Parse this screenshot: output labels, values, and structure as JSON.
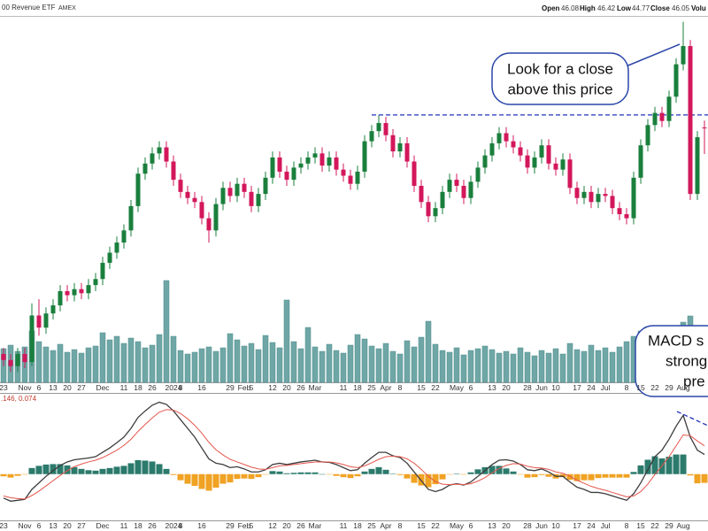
{
  "chart_data": {
    "type": "candlestick",
    "header": {
      "title": "00 Revenue ETF",
      "exchange": "AMEX",
      "ohlc_labels": [
        "Open",
        "High",
        "Low",
        "Close",
        "Volu"
      ]
    },
    "macd_label": ".146, 0.074",
    "annotations": [
      [
        "Look for a close",
        "above this price"
      ],
      [
        "MACD s",
        "strong",
        "pre"
      ]
    ],
    "up_color": "#1a7f3c",
    "down_color": "#d3175b",
    "volume_color": "#6fa7a6",
    "macd_color": "#3d3d3d",
    "signal_color": "#e4554c",
    "hist_up_color": "#2b7a6c",
    "hist_down_color": "#f0a223",
    "resistance": 46.7,
    "ylim": [
      33.5,
      51.5
    ],
    "vlim": [
      0,
      13
    ],
    "mlim": [
      -1.0,
      1.7
    ],
    "categories": [
      "23",
      null,
      null,
      "Nov",
      null,
      "6",
      null,
      "13",
      null,
      "20",
      null,
      "27",
      null,
      null,
      "Dec",
      null,
      null,
      "11",
      null,
      "18",
      null,
      "26",
      null,
      null,
      "2024",
      "8",
      null,
      null,
      "16",
      null,
      null,
      null,
      "29",
      null,
      "Feb",
      "5",
      null,
      null,
      "12",
      null,
      "20",
      null,
      "26",
      null,
      "Mar",
      null,
      null,
      null,
      "11",
      null,
      "18",
      null,
      "25",
      null,
      "Apr",
      null,
      "8",
      null,
      null,
      "15",
      null,
      "22",
      null,
      null,
      "May",
      null,
      "6",
      null,
      null,
      "13",
      null,
      "20",
      null,
      null,
      "28",
      null,
      "Jun",
      null,
      "10",
      null,
      null,
      "17",
      null,
      "24",
      null,
      "Jul",
      null,
      null,
      "8",
      null,
      "15",
      null,
      "22",
      null,
      "29",
      null,
      "Aug",
      null,
      null,
      null
    ],
    "candles": [
      [
        34.9,
        35.2,
        34.3,
        34.6
      ],
      [
        34.6,
        34.9,
        34.0,
        34.3
      ],
      [
        34.3,
        35.2,
        34.0,
        34.9
      ],
      [
        34.9,
        35.2,
        34.2,
        34.5
      ],
      [
        34.5,
        37.4,
        34.3,
        36.8
      ],
      [
        36.8,
        37.6,
        35.8,
        36.2
      ],
      [
        36.2,
        37.2,
        35.9,
        36.9
      ],
      [
        36.9,
        37.6,
        36.6,
        37.3
      ],
      [
        37.3,
        38.3,
        37.0,
        38.0
      ],
      [
        38.0,
        38.3,
        37.5,
        37.8
      ],
      [
        37.8,
        38.4,
        37.5,
        38.1
      ],
      [
        38.1,
        38.4,
        37.6,
        37.9
      ],
      [
        37.9,
        38.6,
        37.6,
        38.3
      ],
      [
        38.3,
        38.9,
        38.0,
        38.6
      ],
      [
        38.6,
        39.7,
        38.3,
        39.4
      ],
      [
        39.4,
        40.2,
        39.1,
        39.9
      ],
      [
        39.9,
        40.7,
        39.6,
        40.4
      ],
      [
        40.4,
        41.3,
        40.1,
        41.0
      ],
      [
        41.0,
        42.5,
        40.7,
        42.2
      ],
      [
        42.2,
        44.1,
        41.9,
        43.8
      ],
      [
        43.8,
        44.6,
        43.5,
        44.3
      ],
      [
        44.3,
        45.1,
        44.0,
        44.8
      ],
      [
        44.8,
        45.4,
        44.5,
        45.1
      ],
      [
        45.1,
        45.4,
        44.1,
        44.4
      ],
      [
        44.4,
        44.7,
        43.2,
        43.5
      ],
      [
        43.5,
        43.8,
        42.6,
        42.9
      ],
      [
        42.9,
        43.2,
        42.3,
        42.6
      ],
      [
        42.6,
        42.9,
        42.1,
        42.4
      ],
      [
        42.4,
        42.7,
        41.3,
        41.6
      ],
      [
        41.6,
        41.9,
        40.4,
        41.0
      ],
      [
        41.0,
        42.6,
        40.7,
        42.3
      ],
      [
        42.3,
        43.4,
        42.0,
        43.1
      ],
      [
        43.1,
        43.4,
        42.4,
        42.7
      ],
      [
        42.7,
        43.6,
        42.4,
        43.3
      ],
      [
        43.3,
        43.6,
        42.6,
        42.9
      ],
      [
        42.9,
        43.2,
        41.9,
        42.2
      ],
      [
        42.2,
        43.1,
        41.9,
        42.8
      ],
      [
        42.8,
        43.9,
        42.5,
        43.6
      ],
      [
        43.6,
        44.9,
        43.3,
        44.6
      ],
      [
        44.6,
        44.9,
        43.6,
        43.9
      ],
      [
        43.9,
        44.2,
        43.2,
        43.5
      ],
      [
        43.5,
        44.4,
        43.2,
        44.1
      ],
      [
        44.1,
        44.6,
        43.8,
        44.3
      ],
      [
        44.3,
        44.9,
        44.0,
        44.6
      ],
      [
        44.6,
        45.1,
        44.3,
        44.8
      ],
      [
        44.8,
        45.1,
        43.9,
        44.2
      ],
      [
        44.2,
        44.9,
        43.9,
        44.6
      ],
      [
        44.6,
        44.9,
        43.7,
        44.0
      ],
      [
        44.0,
        44.3,
        43.4,
        43.7
      ],
      [
        43.7,
        44.0,
        43.0,
        43.3
      ],
      [
        43.3,
        44.2,
        43.0,
        43.9
      ],
      [
        43.9,
        45.7,
        43.6,
        45.4
      ],
      [
        45.4,
        46.2,
        45.1,
        45.9
      ],
      [
        45.9,
        46.7,
        45.6,
        46.3
      ],
      [
        46.3,
        46.6,
        45.4,
        45.7
      ],
      [
        45.7,
        46.0,
        44.6,
        44.9
      ],
      [
        44.9,
        45.6,
        44.6,
        45.3
      ],
      [
        45.3,
        45.6,
        44.1,
        44.4
      ],
      [
        44.4,
        44.7,
        42.9,
        43.2
      ],
      [
        43.2,
        43.5,
        42.1,
        42.4
      ],
      [
        42.4,
        42.7,
        41.4,
        41.7
      ],
      [
        41.7,
        42.4,
        41.4,
        42.1
      ],
      [
        42.1,
        43.2,
        41.8,
        42.9
      ],
      [
        42.9,
        43.8,
        42.6,
        43.5
      ],
      [
        43.5,
        43.8,
        42.9,
        43.2
      ],
      [
        43.2,
        43.5,
        42.3,
        42.6
      ],
      [
        42.6,
        43.7,
        42.3,
        43.4
      ],
      [
        43.4,
        44.4,
        43.1,
        44.1
      ],
      [
        44.1,
        45.0,
        43.8,
        44.7
      ],
      [
        44.7,
        45.6,
        44.4,
        45.3
      ],
      [
        45.3,
        46.1,
        45.0,
        45.8
      ],
      [
        45.8,
        46.1,
        45.1,
        45.4
      ],
      [
        45.4,
        45.7,
        44.8,
        45.1
      ],
      [
        45.1,
        45.4,
        44.4,
        44.7
      ],
      [
        44.7,
        45.0,
        43.8,
        44.1
      ],
      [
        44.1,
        44.9,
        43.8,
        44.6
      ],
      [
        44.6,
        45.5,
        44.3,
        45.2
      ],
      [
        45.2,
        45.5,
        44.0,
        44.3
      ],
      [
        44.3,
        44.6,
        43.7,
        44.0
      ],
      [
        44.0,
        44.8,
        43.7,
        44.5
      ],
      [
        44.5,
        44.8,
        42.8,
        43.1
      ],
      [
        43.1,
        43.4,
        42.3,
        42.6
      ],
      [
        42.6,
        43.2,
        42.3,
        42.9
      ],
      [
        42.9,
        43.2,
        42.1,
        42.4
      ],
      [
        42.4,
        43.1,
        42.1,
        42.8
      ],
      [
        42.8,
        43.1,
        42.4,
        42.7
      ],
      [
        42.7,
        43.0,
        41.8,
        42.1
      ],
      [
        42.1,
        42.4,
        41.5,
        41.8
      ],
      [
        41.8,
        42.1,
        41.3,
        41.6
      ],
      [
        41.6,
        43.9,
        41.3,
        43.6
      ],
      [
        43.6,
        45.5,
        43.3,
        45.2
      ],
      [
        45.2,
        46.5,
        44.9,
        46.2
      ],
      [
        46.2,
        47.1,
        45.9,
        46.8
      ],
      [
        46.8,
        47.1,
        46.1,
        46.4
      ],
      [
        46.4,
        47.9,
        46.1,
        47.6
      ],
      [
        47.6,
        49.5,
        47.3,
        49.2
      ],
      [
        49.2,
        51.3,
        48.9,
        50.1
      ],
      [
        50.1,
        50.4,
        42.5,
        42.8
      ],
      [
        42.8,
        45.9,
        42.5,
        45.6
      ],
      [
        46.08,
        46.42,
        44.77,
        46.05
      ]
    ],
    "volume": [
      3.8,
      4.2,
      3.5,
      4.0,
      5.8,
      4.6,
      4.0,
      3.6,
      4.3,
      3.4,
      3.7,
      3.3,
      3.9,
      4.1,
      5.6,
      4.8,
      5.2,
      4.4,
      5.0,
      4.6,
      3.9,
      4.2,
      5.4,
      11.5,
      5.2,
      3.6,
      3.2,
      3.4,
      3.8,
      4.0,
      3.5,
      3.9,
      5.5,
      4.8,
      4.1,
      4.4,
      3.7,
      5.3,
      4.5,
      3.9,
      9.3,
      4.6,
      3.8,
      6.2,
      4.0,
      3.5,
      4.3,
      3.6,
      3.3,
      4.2,
      5.4,
      4.9,
      4.1,
      3.8,
      4.4,
      3.5,
      3.2,
      4.7,
      4.0,
      5.1,
      6.9,
      4.3,
      3.6,
      3.4,
      3.9,
      3.1,
      3.6,
      3.8,
      4.1,
      3.7,
      3.3,
      3.5,
      3.2,
      3.9,
      3.4,
      3.0,
      3.6,
      3.3,
      3.8,
      3.2,
      4.4,
      3.7,
      3.5,
      4.2,
      3.6,
      3.9,
      3.4,
      4.0,
      4.6,
      5.2,
      5.8,
      5.0,
      4.6,
      4.8,
      5.5,
      6.2,
      6.8,
      7.5,
      6.4,
      5.6
    ],
    "macd": [
      -0.55,
      -0.62,
      -0.6,
      -0.58,
      -0.35,
      -0.2,
      -0.05,
      0.08,
      0.2,
      0.28,
      0.33,
      0.35,
      0.37,
      0.4,
      0.5,
      0.6,
      0.72,
      0.85,
      1.05,
      1.3,
      1.45,
      1.58,
      1.65,
      1.6,
      1.45,
      1.25,
      1.05,
      0.85,
      0.6,
      0.35,
      0.25,
      0.22,
      0.15,
      0.17,
      0.12,
      0.05,
      0.05,
      0.1,
      0.22,
      0.25,
      0.22,
      0.25,
      0.28,
      0.3,
      0.32,
      0.28,
      0.27,
      0.22,
      0.15,
      0.08,
      0.1,
      0.25,
      0.38,
      0.5,
      0.5,
      0.42,
      0.38,
      0.25,
      0.05,
      -0.15,
      -0.35,
      -0.4,
      -0.35,
      -0.25,
      -0.22,
      -0.25,
      -0.18,
      -0.05,
      0.08,
      0.22,
      0.32,
      0.33,
      0.3,
      0.22,
      0.1,
      0.08,
      0.12,
      0.05,
      -0.05,
      -0.05,
      -0.18,
      -0.3,
      -0.35,
      -0.42,
      -0.42,
      -0.45,
      -0.5,
      -0.55,
      -0.6,
      -0.45,
      -0.2,
      0.1,
      0.4,
      0.55,
      0.8,
      1.1,
      1.35,
      0.85,
      0.55,
      0.45
    ],
    "signal": [
      -0.5,
      -0.54,
      -0.56,
      -0.57,
      -0.49,
      -0.39,
      -0.27,
      -0.15,
      -0.03,
      0.08,
      0.17,
      0.23,
      0.28,
      0.32,
      0.38,
      0.46,
      0.55,
      0.66,
      0.8,
      0.98,
      1.14,
      1.29,
      1.42,
      1.48,
      1.47,
      1.39,
      1.27,
      1.12,
      0.94,
      0.73,
      0.56,
      0.44,
      0.34,
      0.28,
      0.22,
      0.16,
      0.12,
      0.11,
      0.15,
      0.19,
      0.2,
      0.22,
      0.24,
      0.26,
      0.28,
      0.28,
      0.28,
      0.26,
      0.22,
      0.17,
      0.15,
      0.19,
      0.26,
      0.34,
      0.4,
      0.41,
      0.4,
      0.35,
      0.25,
      0.11,
      -0.05,
      -0.17,
      -0.23,
      -0.24,
      -0.23,
      -0.24,
      -0.22,
      -0.16,
      -0.08,
      0.03,
      0.13,
      0.2,
      0.24,
      0.23,
      0.18,
      0.15,
      0.14,
      0.11,
      0.05,
      0.02,
      -0.05,
      -0.14,
      -0.21,
      -0.28,
      -0.33,
      -0.37,
      -0.42,
      -0.47,
      -0.52,
      -0.5,
      -0.4,
      -0.23,
      -0.01,
      0.19,
      0.4,
      0.65,
      0.9,
      0.88,
      0.76,
      0.65
    ],
    "histogram": [
      -0.05,
      -0.08,
      -0.04,
      -0.01,
      0.14,
      0.19,
      0.22,
      0.23,
      0.23,
      0.2,
      0.16,
      0.12,
      0.09,
      0.08,
      0.12,
      0.14,
      0.17,
      0.19,
      0.25,
      0.32,
      0.31,
      0.29,
      0.23,
      0.12,
      -0.02,
      -0.14,
      -0.22,
      -0.27,
      -0.34,
      -0.38,
      -0.31,
      -0.22,
      -0.19,
      -0.11,
      -0.1,
      -0.11,
      -0.07,
      -0.01,
      0.07,
      0.06,
      0.02,
      0.03,
      0.04,
      0.04,
      0.04,
      0,
      -0.01,
      -0.04,
      -0.07,
      -0.09,
      -0.05,
      0.06,
      0.12,
      0.16,
      0.1,
      0.01,
      -0.02,
      -0.1,
      -0.2,
      -0.26,
      -0.3,
      -0.23,
      -0.12,
      -0.01,
      0.01,
      -0.01,
      0.04,
      0.11,
      0.16,
      0.19,
      0.19,
      0.13,
      0.06,
      -0.01,
      -0.08,
      -0.07,
      -0.02,
      -0.06,
      -0.1,
      -0.07,
      -0.13,
      -0.16,
      -0.14,
      -0.14,
      -0.09,
      -0.08,
      -0.08,
      -0.08,
      -0.08,
      0.05,
      0.2,
      0.33,
      0.41,
      0.36,
      0.4,
      0.45,
      0.45,
      -0.03,
      -0.21,
      -0.2
    ]
  }
}
